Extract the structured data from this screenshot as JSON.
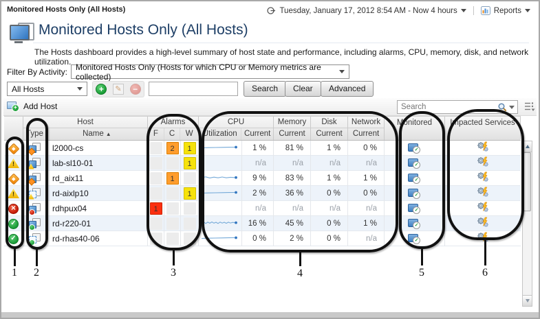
{
  "topbar": {
    "breadcrumb": "Monitored Hosts Only (All Hosts)",
    "time_range": "Tuesday, January 17, 2012 8:54 AM - Now 4 hours",
    "reports_label": "Reports"
  },
  "header": {
    "title": "Monitored Hosts Only (All Hosts)",
    "description": "The Hosts dashboard provides a high-level summary of host state and performance, including alarms, CPU, memory, disk, and network utilization."
  },
  "filter": {
    "label": "Filter By Activity:",
    "selected_option": "Monitored Hosts Only (Hosts for which CPU or Memory metrics are collected)"
  },
  "toolbar": {
    "scope_selected": "All Hosts",
    "filter_input_value": "",
    "search_label": "Search",
    "clear_label": "Clear",
    "advanced_label": "Advanced"
  },
  "panel": {
    "add_host_label": "Add Host",
    "search_placeholder": "Search"
  },
  "table": {
    "group_headers": {
      "host": "Host",
      "alarms": "Alarms",
      "cpu": "CPU",
      "memory": "Memory",
      "disk": "Disk",
      "network": "Network",
      "monitored": "Monitored",
      "impacted_services": "Impacted Services"
    },
    "sub_headers": {
      "type": "Type",
      "name": "Name",
      "sort_indicator": "▲",
      "fatal": "F",
      "critical": "C",
      "warning": "W",
      "utilization": "Utilization",
      "current": "Current"
    },
    "rows": [
      {
        "name": "l2000-cs",
        "severity": "critical",
        "host_kind": "physical",
        "fatal": "",
        "critical": "2",
        "warning": "1",
        "sparkline": "flat",
        "cpu_current": "1 %",
        "memory_current": "81 %",
        "disk_current": "1 %",
        "network_current": "0 %"
      },
      {
        "name": "lab-sl10-01",
        "severity": "warning",
        "host_kind": "physical",
        "fatal": "",
        "critical": "",
        "warning": "1",
        "sparkline": null,
        "cpu_current": "n/a",
        "memory_current": "n/a",
        "disk_current": "n/a",
        "network_current": "n/a"
      },
      {
        "name": "rd_aix11",
        "severity": "critical",
        "host_kind": "physical",
        "fatal": "",
        "critical": "1",
        "warning": "",
        "sparkline": "wavy",
        "cpu_current": "9 %",
        "memory_current": "83 %",
        "disk_current": "1 %",
        "network_current": "1 %"
      },
      {
        "name": "rd-aixlp10",
        "severity": "warning",
        "host_kind": "virtual",
        "fatal": "",
        "critical": "",
        "warning": "1",
        "sparkline": "flat",
        "cpu_current": "2 %",
        "memory_current": "36 %",
        "disk_current": "0 %",
        "network_current": "0 %"
      },
      {
        "name": "rdhpux04",
        "severity": "fatal",
        "host_kind": "physical",
        "fatal": "1",
        "critical": "",
        "warning": "",
        "sparkline": null,
        "cpu_current": "n/a",
        "memory_current": "n/a",
        "disk_current": "n/a",
        "network_current": "n/a"
      },
      {
        "name": "rd-r220-01",
        "severity": "normal",
        "host_kind": "physical",
        "fatal": "",
        "critical": "",
        "warning": "",
        "sparkline": "noisy",
        "cpu_current": "16 %",
        "memory_current": "45 %",
        "disk_current": "0 %",
        "network_current": "1 %"
      },
      {
        "name": "rd-rhas40-06",
        "severity": "normal",
        "host_kind": "virtual",
        "fatal": "",
        "critical": "",
        "warning": "",
        "sparkline": "flat",
        "cpu_current": "0 %",
        "memory_current": "2 %",
        "disk_current": "0 %",
        "network_current": "n/a"
      }
    ]
  },
  "annotations": {
    "labels": [
      "1",
      "2",
      "3",
      "4",
      "5",
      "6"
    ]
  },
  "colors": {
    "fatal": "#fb2f10",
    "critical": "#ff9d2d",
    "warning": "#f6e20b",
    "normal": "#2eb141",
    "sparkline": "#74a9d8",
    "title_text": "#1e3f66"
  }
}
